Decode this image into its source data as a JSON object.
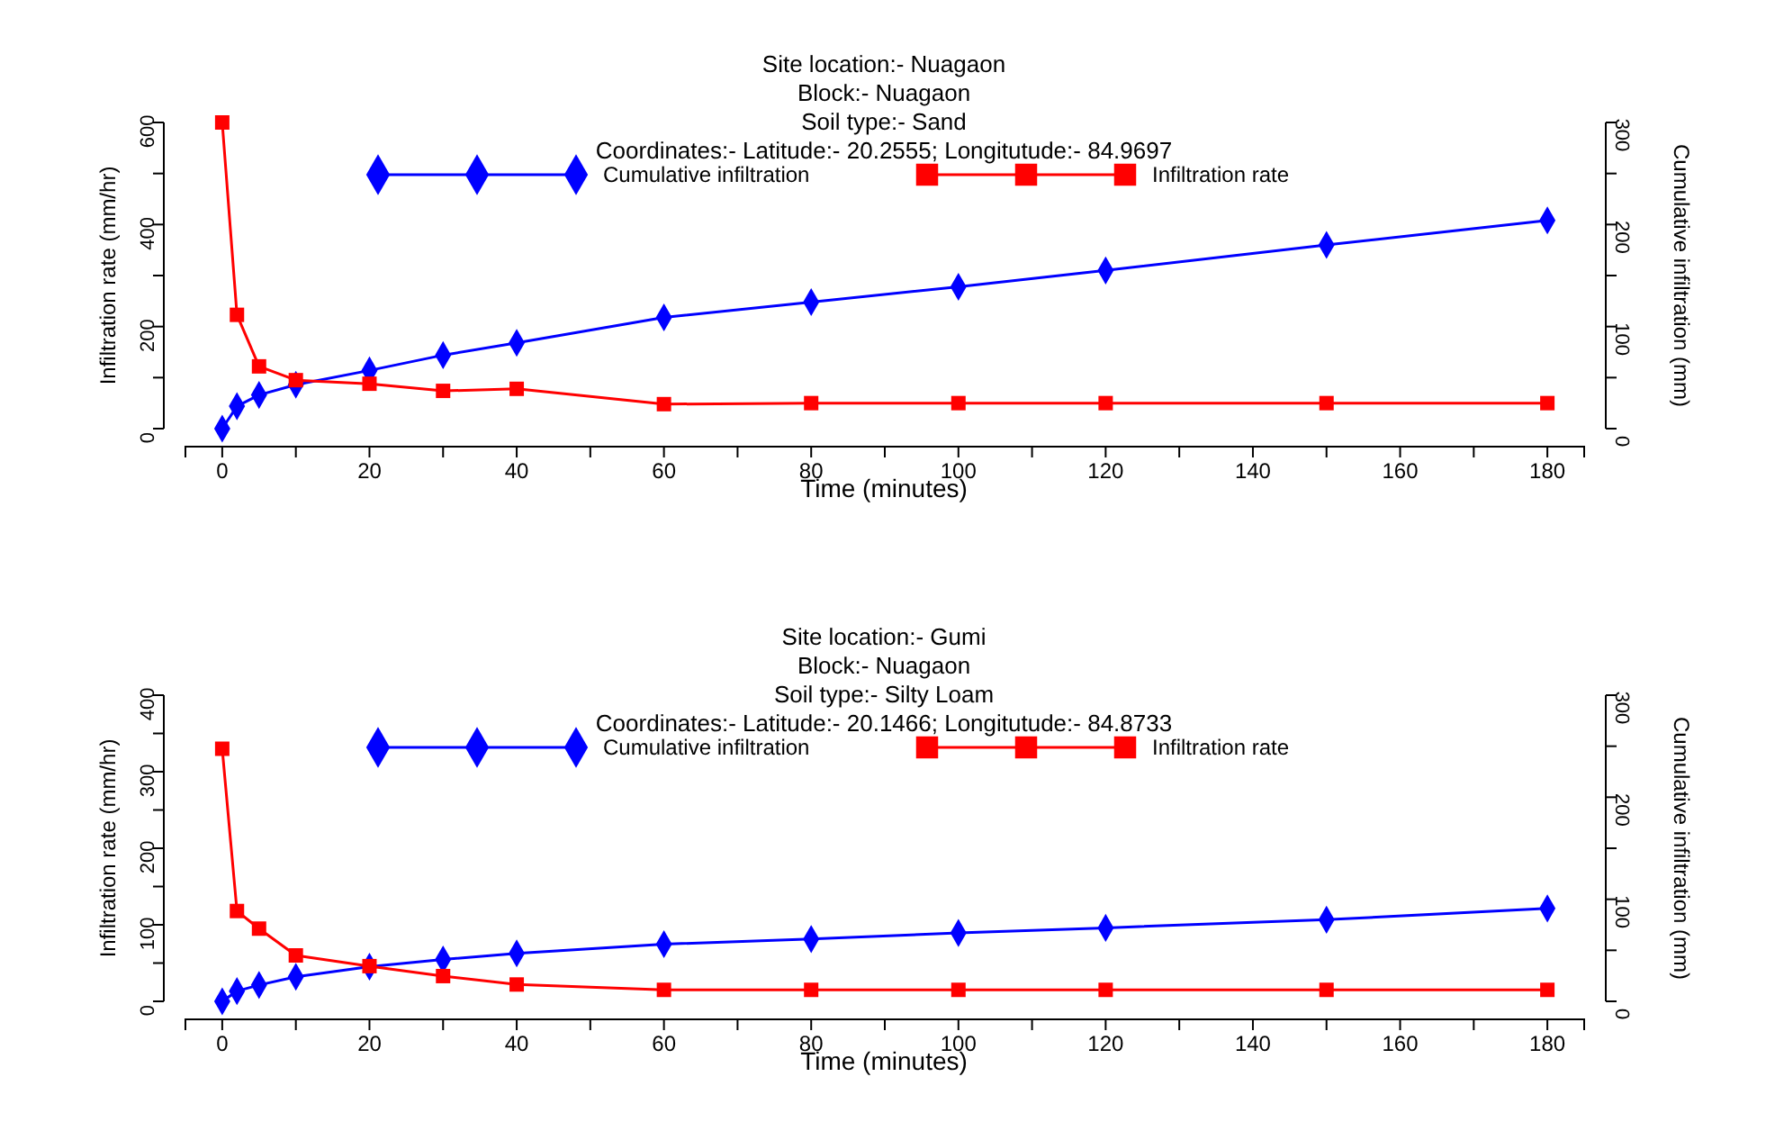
{
  "chart_data": [
    {
      "type": "line",
      "title": "Site location:- Nuagaon",
      "subtitle": "Block:- Nuagaon\nSoil type:- Sand\nCoordinates:- Latitude:- 20.2555; Longitutude:- 84.9697",
      "xlabel": "Time (minutes)",
      "ylabel": "Infiltration rate (mm/hr)",
      "y2label": "Cumulative infiltration (mm)",
      "x": [
        0,
        2,
        5,
        10,
        20,
        30,
        40,
        60,
        80,
        100,
        120,
        150,
        180
      ],
      "series": [
        {
          "name": "Cumulative infiltration",
          "color": "#0000ff",
          "marker": "diamond",
          "axis": "y2",
          "values": [
            0,
            22,
            33,
            43,
            57,
            72,
            84,
            109,
            124,
            139,
            155,
            180,
            204
          ]
        },
        {
          "name": "Infiltration rate",
          "color": "#ff0000",
          "marker": "square",
          "values": [
            600,
            223,
            122,
            95,
            88,
            74,
            78,
            48,
            50,
            50,
            50,
            50,
            50
          ]
        }
      ],
      "xlim": [
        -5,
        185
      ],
      "xticks": [
        0,
        {
          "value": 10,
          "label": null
        },
        20,
        {
          "value": 30,
          "label": null
        },
        40,
        {
          "value": 50,
          "label": null
        },
        60,
        {
          "value": 70,
          "label": null
        },
        80,
        {
          "value": 90,
          "label": null
        },
        100,
        {
          "value": 110,
          "label": null
        },
        120,
        {
          "value": 130,
          "label": null
        },
        140,
        {
          "value": 150,
          "label": null
        },
        160,
        {
          "value": 170,
          "label": null
        },
        180
      ],
      "ylim": [
        0,
        600
      ],
      "yticks": [
        0,
        {
          "value": 100,
          "label": null
        },
        200,
        {
          "value": 300,
          "label": null
        },
        400,
        {
          "value": 500,
          "label": null
        },
        600
      ],
      "y2lim": [
        0,
        300
      ],
      "y2ticks": [
        0,
        {
          "value": 50,
          "label": null
        },
        100,
        {
          "value": 150,
          "label": null
        },
        200,
        {
          "value": 250,
          "label": null
        },
        300
      ],
      "legend": "top",
      "grid": false
    },
    {
      "type": "line",
      "title": "Site location:- Gumi",
      "subtitle": "Block:- Nuagaon\nSoil type:- Silty Loam\nCoordinates:- Latitude:- 20.1466; Longitutude:- 84.8733",
      "xlabel": "Time (minutes)",
      "ylabel": "Infiltration rate (mm/hr)",
      "y2label": "Cumulative infiltration (mm)",
      "x": [
        0,
        2,
        5,
        10,
        20,
        30,
        40,
        60,
        80,
        100,
        120,
        150,
        180
      ],
      "series": [
        {
          "name": "Cumulative infiltration",
          "color": "#0000ff",
          "marker": "diamond",
          "axis": "y2",
          "values": [
            0,
            10,
            16,
            24,
            34,
            41,
            47,
            56,
            61,
            67,
            72,
            80,
            91
          ]
        },
        {
          "name": "Infiltration rate",
          "color": "#ff0000",
          "marker": "square",
          "values": [
            330,
            118,
            95,
            60,
            46,
            33,
            22,
            15,
            15,
            15,
            15,
            15,
            15
          ]
        }
      ],
      "xlim": [
        -5,
        185
      ],
      "xticks": [
        0,
        {
          "value": 10,
          "label": null
        },
        20,
        {
          "value": 30,
          "label": null
        },
        40,
        {
          "value": 50,
          "label": null
        },
        60,
        {
          "value": 70,
          "label": null
        },
        80,
        {
          "value": 90,
          "label": null
        },
        100,
        {
          "value": 110,
          "label": null
        },
        120,
        {
          "value": 130,
          "label": null
        },
        140,
        {
          "value": 150,
          "label": null
        },
        160,
        {
          "value": 170,
          "label": null
        },
        180
      ],
      "ylim": [
        0,
        400
      ],
      "yticks": [
        0,
        {
          "value": 50,
          "label": null
        },
        100,
        {
          "value": 150,
          "label": null
        },
        200,
        {
          "value": 250,
          "label": null
        },
        300,
        {
          "value": 350,
          "label": null
        },
        400
      ],
      "y2lim": [
        0,
        300
      ],
      "y2ticks": [
        0,
        {
          "value": 50,
          "label": null
        },
        100,
        {
          "value": 150,
          "label": null
        },
        200,
        {
          "value": 250,
          "label": null
        },
        300
      ],
      "legend": "top",
      "grid": false
    }
  ]
}
